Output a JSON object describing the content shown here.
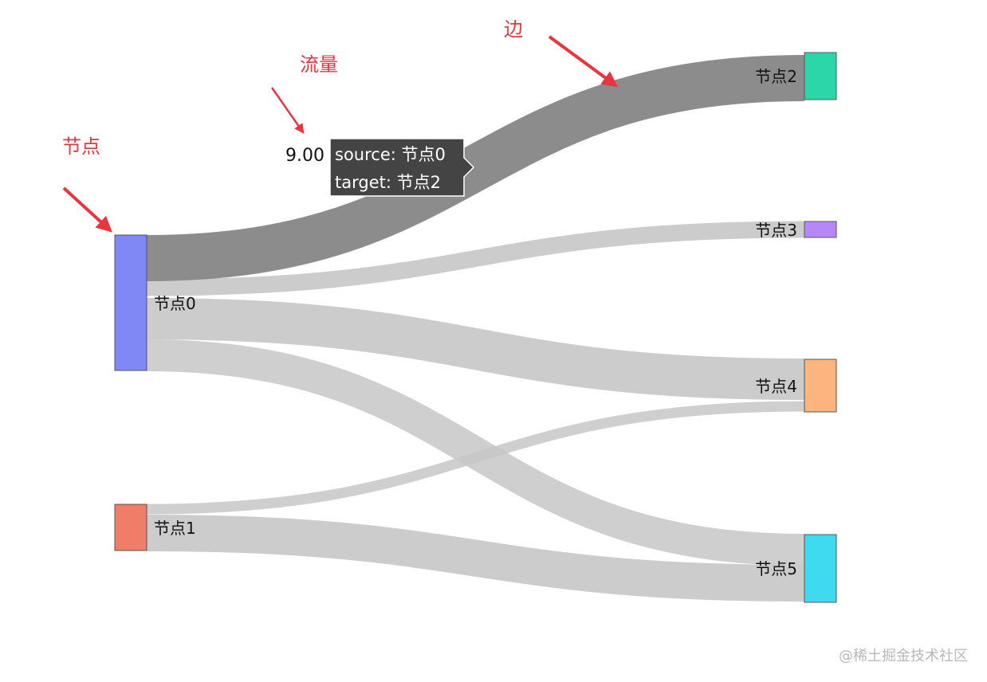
{
  "nodes": [
    {
      "id": "n0",
      "label": "节点0",
      "color": "#8088f7"
    },
    {
      "id": "n1",
      "label": "节点1",
      "color": "#f07d68"
    },
    {
      "id": "n2",
      "label": "节点2",
      "color": "#2bd6a8"
    },
    {
      "id": "n3",
      "label": "节点3",
      "color": "#b687f7"
    },
    {
      "id": "n4",
      "label": "节点4",
      "color": "#fdb57f"
    },
    {
      "id": "n5",
      "label": "节点5",
      "color": "#3fdaef"
    }
  ],
  "links": [
    {
      "source": "节点0",
      "target": "节点2",
      "value": 9.0,
      "highlighted": true
    },
    {
      "source": "节点0",
      "target": "节点3",
      "value": 1.0
    },
    {
      "source": "节点0",
      "target": "节点4",
      "value": 4.0
    },
    {
      "source": "节点0",
      "target": "节点5",
      "value": 6.0
    },
    {
      "source": "节点1",
      "target": "节点4",
      "value": 1.0
    },
    {
      "source": "节点1",
      "target": "节点5",
      "value": 4.5
    }
  ],
  "colors": {
    "link_default": "#c7c7c7",
    "link_highlight": "#8c8c8c",
    "annotation": "#e8363f",
    "tooltip_bg": "#444444"
  },
  "tooltip": {
    "value": "9.00",
    "source_line": "source: 节点0",
    "target_line": "target: 节点2"
  },
  "annotations": {
    "node": "节点",
    "flow": "流量",
    "edge": "边"
  },
  "watermark": "@稀土掘金技术社区"
}
